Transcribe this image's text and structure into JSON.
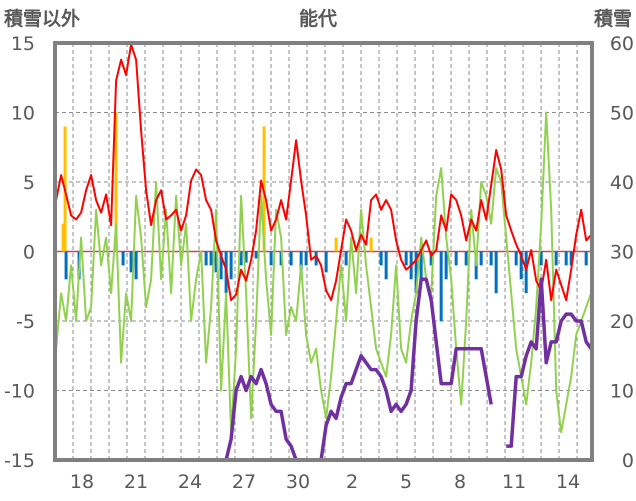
{
  "chart_data": {
    "type": "line",
    "title": "能代",
    "ylabel": "積雪以外",
    "y2label": "積雪",
    "ylim": [
      -15,
      15
    ],
    "y2lim": [
      0,
      60
    ],
    "yticks": [
      15,
      10,
      5,
      0,
      -5,
      -10,
      -15
    ],
    "y2ticks": [
      60,
      50,
      40,
      30,
      20,
      10,
      0
    ],
    "xlim_days": [
      0,
      29.83
    ],
    "xticks": [
      {
        "day": 1.5,
        "label": "18"
      },
      {
        "day": 4.5,
        "label": "21"
      },
      {
        "day": 7.5,
        "label": "24"
      },
      {
        "day": 10.5,
        "label": "27"
      },
      {
        "day": 13.5,
        "label": "30"
      },
      {
        "day": 16.5,
        "label": "2"
      },
      {
        "day": 19.5,
        "label": "5"
      },
      {
        "day": 22.5,
        "label": "8"
      },
      {
        "day": 25.5,
        "label": "11"
      },
      {
        "day": 28.5,
        "label": "14"
      }
    ],
    "grid": true,
    "sample_start_day": 0.06,
    "sample_step_day": 0.2778,
    "series": [
      {
        "name": "temperature",
        "color": "#ff0000",
        "axis": "left",
        "values": [
          3.7,
          5.5,
          4.1,
          2.6,
          2.3,
          2.8,
          4.4,
          5.5,
          3.7,
          2.8,
          4.1,
          1.9,
          12.3,
          13.8,
          12.7,
          14.9,
          13.8,
          8.7,
          4.4,
          1.9,
          3.7,
          4.4,
          2.3,
          2.6,
          3.0,
          1.5,
          2.6,
          5.1,
          5.9,
          5.5,
          3.7,
          3.0,
          0.8,
          -0.3,
          -1.3,
          -3.5,
          -3.1,
          -1.3,
          -2.1,
          -0.6,
          1.5,
          5.1,
          3.7,
          1.5,
          2.3,
          3.7,
          2.3,
          5.1,
          8.0,
          5.1,
          2.6,
          -0.6,
          -0.3,
          -1.0,
          -2.8,
          -3.5,
          -2.1,
          0.1,
          2.3,
          1.5,
          0.1,
          1.2,
          0.5,
          3.7,
          4.1,
          3.0,
          3.7,
          3.0,
          0.8,
          -0.6,
          -1.3,
          -1.0,
          -0.6,
          0.1,
          0.8,
          -0.3,
          0.1,
          2.6,
          1.5,
          4.1,
          3.7,
          2.6,
          0.8,
          2.3,
          1.5,
          3.7,
          2.3,
          4.8,
          7.3,
          5.9,
          2.6,
          1.5,
          0.5,
          -0.3,
          -1.3,
          0.1,
          -2.1,
          -2.8,
          -0.6,
          -3.5,
          -1.3,
          -2.4,
          -3.5,
          -1.3,
          1.2,
          3.0,
          0.8,
          1.2
        ]
      },
      {
        "name": "other",
        "color": "#92d050",
        "axis": "left",
        "values": [
          -7,
          -3,
          -5,
          -1,
          -5,
          1,
          -5,
          -4,
          3,
          -1,
          1,
          -3,
          2,
          -8,
          -3,
          -5,
          4,
          1,
          -4,
          -2,
          5,
          -2,
          3,
          -3,
          4,
          -1,
          2,
          -5,
          -2,
          0,
          -8,
          -4,
          3,
          -10,
          -3,
          -13,
          -7,
          4,
          -3,
          -12,
          -5,
          4,
          -2,
          -6,
          3,
          1,
          -6,
          -4,
          -5,
          -1,
          -6,
          -8,
          -7,
          -10,
          -12,
          -9,
          -5,
          -1,
          -5,
          1,
          -3,
          3,
          -1,
          -4,
          -7,
          -8,
          -9,
          -6,
          -1,
          -7,
          -8,
          -5,
          -3,
          1,
          -2,
          -3,
          4,
          6,
          1,
          -2,
          -7,
          -11,
          -5,
          3,
          -1,
          5,
          4,
          2,
          6,
          5,
          1,
          -3,
          -7,
          -9,
          -11,
          -8,
          -4,
          2,
          10,
          3,
          -10,
          -13,
          -11,
          -9,
          -6,
          -5,
          -4,
          -3
        ]
      },
      {
        "name": "snow_depth",
        "color": "#7030a0",
        "axis": "right",
        "values": [
          0,
          0,
          0,
          0,
          0,
          0,
          0,
          0,
          0,
          0,
          0,
          0,
          0,
          0,
          0,
          0,
          0,
          0,
          0,
          0,
          0,
          0,
          0,
          0,
          0,
          0,
          0,
          0,
          0,
          0,
          0,
          0,
          0,
          0,
          0,
          3,
          10,
          12,
          10,
          12,
          11,
          13,
          11,
          8,
          7,
          7,
          3,
          2,
          0,
          0,
          0,
          0,
          0,
          0,
          5,
          7,
          6,
          9,
          11,
          11,
          13,
          15,
          14,
          13,
          13,
          12,
          10,
          7,
          8,
          7,
          8,
          10,
          20,
          26,
          26,
          23,
          17,
          11,
          11,
          11,
          16,
          16,
          16,
          16,
          16,
          16,
          12,
          8,
          null,
          null,
          2,
          2,
          12,
          12,
          15,
          17,
          16,
          26,
          14,
          17,
          17,
          20,
          21,
          21,
          20,
          20,
          17,
          16
        ]
      }
    ],
    "bars": [
      {
        "name": "negative",
        "color": "#0070c0",
        "points": [
          [
            2,
            -2
          ],
          [
            4.6,
            -2
          ],
          [
            13.4,
            -1
          ],
          [
            15,
            -1.5
          ],
          [
            16,
            -2
          ],
          [
            30,
            -1
          ],
          [
            31,
            -1
          ],
          [
            32,
            -1.5
          ],
          [
            33,
            -2
          ],
          [
            34,
            -3
          ],
          [
            35,
            -2
          ],
          [
            37,
            -1
          ],
          [
            38,
            -0.8
          ],
          [
            40,
            -0.5
          ],
          [
            43,
            -1
          ],
          [
            45,
            -1
          ],
          [
            47,
            -1
          ],
          [
            49,
            -2
          ],
          [
            50,
            -1
          ],
          [
            52,
            -1
          ],
          [
            54,
            -1.5
          ],
          [
            58,
            -1
          ],
          [
            65,
            -1
          ],
          [
            66,
            -2
          ],
          [
            70,
            -1
          ],
          [
            71,
            -2
          ],
          [
            72,
            -3
          ],
          [
            73,
            -2
          ],
          [
            75,
            -1
          ],
          [
            77,
            -5
          ],
          [
            78,
            -2
          ],
          [
            80,
            -1
          ],
          [
            82,
            -1
          ],
          [
            84,
            -2
          ],
          [
            85,
            -1
          ],
          [
            87,
            -1
          ],
          [
            88,
            -3
          ],
          [
            92,
            -1
          ],
          [
            93,
            -2
          ],
          [
            94,
            -3
          ],
          [
            97,
            -1
          ],
          [
            100,
            -1
          ],
          [
            102,
            -1
          ],
          [
            103,
            -1
          ],
          [
            106,
            -1
          ]
        ]
      },
      {
        "name": "positive",
        "color": "#ffc000",
        "points": [
          [
            1.4,
            2
          ],
          [
            1.8,
            9
          ],
          [
            12,
            10
          ],
          [
            41.6,
            9
          ],
          [
            56,
            1
          ],
          [
            63,
            1
          ]
        ]
      }
    ]
  }
}
